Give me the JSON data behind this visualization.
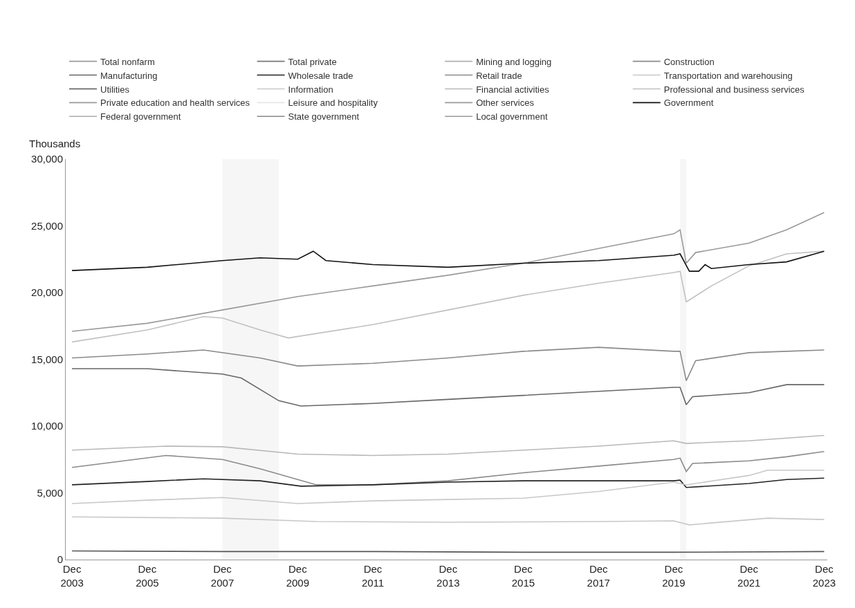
{
  "chart_data": {
    "type": "line",
    "ylabel": "Thousands",
    "xlim": [
      "2003-10",
      "2024-01"
    ],
    "xticks": [
      {
        "value": "2003-12",
        "label": "Dec\n2003"
      },
      {
        "value": "2005-12",
        "label": "Dec\n2005"
      },
      {
        "value": "2007-12",
        "label": "Dec\n2007"
      },
      {
        "value": "2009-12",
        "label": "Dec\n2009"
      },
      {
        "value": "2011-12",
        "label": "Dec\n2011"
      },
      {
        "value": "2013-12",
        "label": "Dec\n2013"
      },
      {
        "value": "2015-12",
        "label": "Dec\n2015"
      },
      {
        "value": "2017-12",
        "label": "Dec\n2017"
      },
      {
        "value": "2019-12",
        "label": "Dec\n2019"
      },
      {
        "value": "2021-12",
        "label": "Dec\n2021"
      },
      {
        "value": "2023-12",
        "label": "Dec\n2023"
      }
    ],
    "ylim": [
      0,
      30000
    ],
    "yticks": [
      0,
      {
        "value": 5000,
        "label": "5,000"
      },
      {
        "value": 10000,
        "label": "10,000"
      },
      {
        "value": 15000,
        "label": "15,000"
      },
      {
        "value": 20000,
        "label": "20,000"
      },
      {
        "value": 25000,
        "label": "25,000"
      },
      {
        "value": 30000,
        "label": "30,000"
      }
    ],
    "grid": false,
    "legend": "top",
    "line_style": "solid",
    "marker": "none",
    "bands": [
      {
        "axis": "x",
        "from": "2007-12",
        "to": "2009-06",
        "color": "#f6f6f6"
      },
      {
        "axis": "x",
        "from": "2020-02",
        "to": "2020-04",
        "color": "#f6f6f6"
      }
    ],
    "series": [
      {
        "name": "Total nonfarm",
        "color": "#9a9a9a"
      },
      {
        "name": "Total private",
        "color": "#777777"
      },
      {
        "name": "Mining and logging",
        "color": "#b0b0b0"
      },
      {
        "name": "Construction",
        "color": "#8a8a8a",
        "x": [
          "2003-12",
          "2006-06",
          "2007-12",
          "2008-12",
          "2010-06",
          "2011-12",
          "2013-12",
          "2015-12",
          "2017-12",
          "2019-12",
          "2020-02",
          "2020-04",
          "2020-06",
          "2021-12",
          "2022-12",
          "2023-12"
        ],
        "values": [
          6900,
          7800,
          7500,
          6800,
          5600,
          5600,
          5900,
          6500,
          7000,
          7500,
          7600,
          6600,
          7200,
          7400,
          7700,
          8100
        ]
      },
      {
        "name": "Manufacturing",
        "color": "#666666",
        "x": [
          "2003-12",
          "2005-12",
          "2007-12",
          "2008-06",
          "2009-06",
          "2010-01",
          "2011-12",
          "2013-12",
          "2015-12",
          "2017-12",
          "2019-12",
          "2020-02",
          "2020-04",
          "2020-06",
          "2021-12",
          "2022-12",
          "2023-12"
        ],
        "values": [
          14300,
          14300,
          13900,
          13600,
          11900,
          11500,
          11700,
          12000,
          12300,
          12600,
          12900,
          12900,
          11600,
          12200,
          12500,
          13100,
          13100
        ]
      },
      {
        "name": "Wholesale trade",
        "color": "#222222",
        "x": [
          "2003-12",
          "2005-12",
          "2007-06",
          "2008-12",
          "2010-01",
          "2011-12",
          "2013-12",
          "2015-12",
          "2017-12",
          "2019-12",
          "2020-02",
          "2020-04",
          "2021-12",
          "2022-12",
          "2023-12"
        ],
        "values": [
          5600,
          5850,
          6050,
          5900,
          5500,
          5600,
          5800,
          5900,
          5900,
          5900,
          5950,
          5400,
          5700,
          6000,
          6100
        ]
      },
      {
        "name": "Retail trade",
        "color": "#8a8a8a",
        "x": [
          "2003-12",
          "2005-12",
          "2007-06",
          "2008-12",
          "2009-12",
          "2011-12",
          "2013-12",
          "2015-12",
          "2017-12",
          "2019-12",
          "2020-02",
          "2020-04",
          "2020-07",
          "2021-12",
          "2022-12",
          "2023-12"
        ],
        "values": [
          15100,
          15400,
          15700,
          15100,
          14500,
          14700,
          15100,
          15600,
          15900,
          15600,
          15600,
          13400,
          14900,
          15500,
          15600,
          15700
        ]
      },
      {
        "name": "Transportation and warehousing",
        "color": "#c8c8c8",
        "x": [
          "2003-12",
          "2005-12",
          "2007-12",
          "2009-12",
          "2011-12",
          "2013-12",
          "2015-12",
          "2017-12",
          "2019-12",
          "2020-04",
          "2021-12",
          "2022-06",
          "2023-12"
        ],
        "values": [
          4200,
          4450,
          4650,
          4200,
          4400,
          4500,
          4600,
          5100,
          5800,
          5600,
          6300,
          6700,
          6700
        ]
      },
      {
        "name": "Utilities",
        "color": "#555555",
        "x": [
          "2003-12",
          "2007-12",
          "2011-12",
          "2015-12",
          "2019-12",
          "2023-12"
        ],
        "values": [
          650,
          600,
          600,
          550,
          550,
          600
        ]
      },
      {
        "name": "Information",
        "color": "#c8c8c8",
        "x": [
          "2003-12",
          "2007-12",
          "2010-06",
          "2013-12",
          "2017-12",
          "2019-12",
          "2020-05",
          "2022-06",
          "2023-12"
        ],
        "values": [
          3200,
          3100,
          2850,
          2800,
          2850,
          2900,
          2600,
          3100,
          3000
        ]
      },
      {
        "name": "Financial activities",
        "color": "#b8b8b8",
        "x": [
          "2003-12",
          "2006-06",
          "2007-12",
          "2009-12",
          "2011-12",
          "2013-12",
          "2015-12",
          "2017-12",
          "2019-12",
          "2020-04",
          "2021-12",
          "2023-12"
        ],
        "values": [
          8200,
          8500,
          8450,
          7900,
          7800,
          7900,
          8200,
          8500,
          8900,
          8700,
          8900,
          9300
        ]
      },
      {
        "name": "Professional and business services",
        "color": "#c0c0c0",
        "x": [
          "2003-12",
          "2005-12",
          "2007-06",
          "2007-12",
          "2008-12",
          "2009-09",
          "2011-12",
          "2013-12",
          "2015-12",
          "2017-12",
          "2019-12",
          "2020-02",
          "2020-04",
          "2020-12",
          "2021-12",
          "2022-12",
          "2023-12"
        ],
        "values": [
          16300,
          17200,
          18200,
          18100,
          17200,
          16600,
          17600,
          18700,
          19800,
          20700,
          21500,
          21600,
          19300,
          20500,
          22000,
          22900,
          23100
        ]
      },
      {
        "name": "Private education and health services",
        "color": "#999999",
        "x": [
          "2003-12",
          "2005-12",
          "2007-12",
          "2009-12",
          "2011-12",
          "2013-12",
          "2015-12",
          "2017-12",
          "2019-12",
          "2020-02",
          "2020-04",
          "2020-07",
          "2021-12",
          "2022-12",
          "2023-12"
        ],
        "values": [
          17100,
          17700,
          18700,
          19700,
          20500,
          21300,
          22200,
          23300,
          24400,
          24700,
          22200,
          23000,
          23700,
          24700,
          26000
        ]
      },
      {
        "name": "Leisure and hospitality",
        "color": "#e6e6e6"
      },
      {
        "name": "Other services",
        "color": "#999999"
      },
      {
        "name": "Government",
        "color": "#111111",
        "x": [
          "2003-12",
          "2005-12",
          "2007-12",
          "2008-12",
          "2009-12",
          "2010-05",
          "2010-09",
          "2011-12",
          "2013-12",
          "2015-12",
          "2017-12",
          "2019-12",
          "2020-02",
          "2020-05",
          "2020-08",
          "2020-10",
          "2020-12",
          "2021-12",
          "2022-12",
          "2023-12"
        ],
        "values": [
          21650,
          21900,
          22400,
          22600,
          22500,
          23100,
          22400,
          22100,
          21900,
          22200,
          22400,
          22800,
          22900,
          21600,
          21600,
          22100,
          21800,
          22100,
          22300,
          23100
        ]
      },
      {
        "name": "Federal government",
        "color": "#aaaaaa"
      },
      {
        "name": "State government",
        "color": "#888888"
      },
      {
        "name": "Local government",
        "color": "#999999"
      }
    ]
  }
}
